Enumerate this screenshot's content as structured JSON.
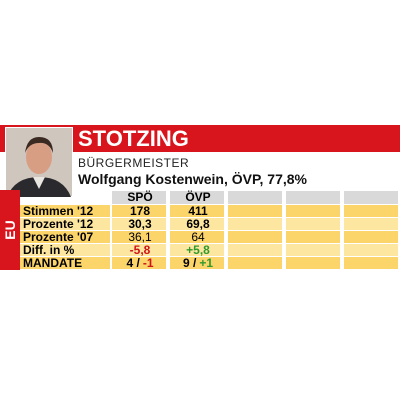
{
  "header": {
    "title": "STOTZING",
    "role": "BÜRGERMEISTER",
    "mayor": "Wolfgang Kostenwein, ÖVP, 77,8%",
    "region": "EU"
  },
  "table": {
    "columns": [
      "SPÖ",
      "ÖVP"
    ],
    "rows": [
      {
        "label": "Stimmen '12",
        "cells": [
          [
            "178"
          ],
          [
            "411"
          ]
        ]
      },
      {
        "label": "Prozente '12",
        "cells": [
          [
            "30,3"
          ],
          [
            "69,8"
          ]
        ]
      },
      {
        "label": "Prozente '07",
        "cells": [
          [
            "36,1"
          ],
          [
            "64"
          ]
        ]
      },
      {
        "label": "Diff. in %",
        "cells": [
          [
            "-5,8"
          ],
          [
            "+5,8"
          ]
        ]
      },
      {
        "label": "MANDATE",
        "cells": [
          [
            "4 /",
            "-1"
          ],
          [
            "9 /",
            "+1"
          ]
        ]
      }
    ]
  }
}
